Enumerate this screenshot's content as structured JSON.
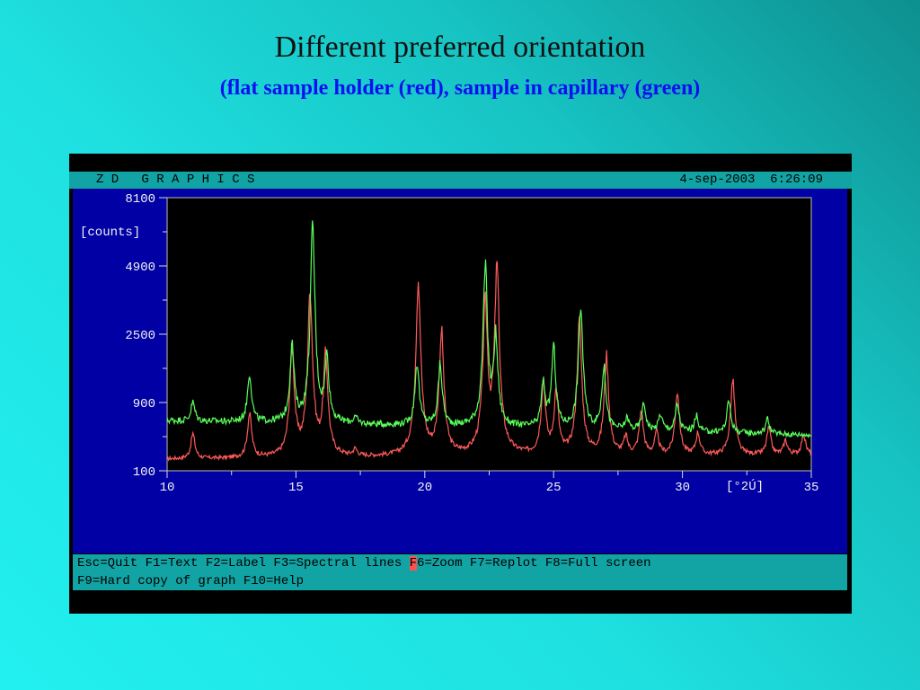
{
  "slide": {
    "title": "Different preferred orientation",
    "subtitle": "(flat sample holder (red), sample in capillary (green)"
  },
  "app": {
    "title": "Z D   G R A P H I C S",
    "datetime": "4-sep-2003  6:26:09"
  },
  "function_keys": {
    "line1_before_cursor": "Esc=Quit F1=Text F2=Label F3=Spectral lines ",
    "cursor_char": "F",
    "line1_after_cursor": "6=Zoom F7=Replot F8=Full screen",
    "line2": "F9=Hard copy of graph F10=Help"
  },
  "colors": {
    "red_series": "#ff5a5a",
    "green_series": "#5aff5a",
    "plot_background": "#000000",
    "panel_background": "#0000a4",
    "bar_background": "#12a4a4"
  },
  "chart_data": {
    "type": "line",
    "title": "",
    "xlabel": "[°2Ú]",
    "ylabel": "[counts]",
    "xlim": [
      10,
      35
    ],
    "ylim": [
      100,
      8100
    ],
    "y_scale": "sqrt",
    "x_ticks": [
      10,
      15,
      20,
      25,
      30,
      35
    ],
    "y_ticks": [
      100,
      900,
      2500,
      4900,
      8100
    ],
    "grid": false,
    "legend": "none",
    "series": [
      {
        "color": "#ff5a5a",
        "baseline": [
          [
            10,
            180
          ],
          [
            35,
            215
          ]
        ],
        "peaks": [
          [
            11.0,
            250
          ],
          [
            13.2,
            520
          ],
          [
            14.85,
            1900
          ],
          [
            15.55,
            3800
          ],
          [
            16.15,
            1750
          ],
          [
            17.3,
            60
          ],
          [
            19.75,
            4200
          ],
          [
            20.65,
            2400
          ],
          [
            22.35,
            3300
          ],
          [
            22.8,
            4700
          ],
          [
            24.6,
            1130
          ],
          [
            25.1,
            920
          ],
          [
            26.0,
            2700
          ],
          [
            27.05,
            1700
          ],
          [
            27.8,
            180
          ],
          [
            28.4,
            540
          ],
          [
            29.0,
            230
          ],
          [
            29.8,
            880
          ],
          [
            30.6,
            230
          ],
          [
            31.95,
            1120
          ],
          [
            33.35,
            290
          ],
          [
            34.0,
            140
          ],
          [
            34.7,
            210
          ]
        ]
      },
      {
        "color": "#5aff5a",
        "baseline": [
          [
            10,
            610
          ],
          [
            35,
            420
          ]
        ],
        "peaks": [
          [
            11.0,
            300
          ],
          [
            13.2,
            900
          ],
          [
            14.85,
            1600
          ],
          [
            15.65,
            6100
          ],
          [
            16.2,
            1300
          ],
          [
            17.3,
            90
          ],
          [
            19.7,
            1200
          ],
          [
            20.6,
            1150
          ],
          [
            22.35,
            4300
          ],
          [
            22.75,
            1900
          ],
          [
            24.6,
            750
          ],
          [
            25.0,
            1600
          ],
          [
            26.05,
            2900
          ],
          [
            26.95,
            1150
          ],
          [
            27.85,
            160
          ],
          [
            28.5,
            400
          ],
          [
            29.15,
            230
          ],
          [
            29.8,
            400
          ],
          [
            30.55,
            220
          ],
          [
            31.8,
            480
          ],
          [
            33.3,
            200
          ]
        ]
      }
    ]
  }
}
